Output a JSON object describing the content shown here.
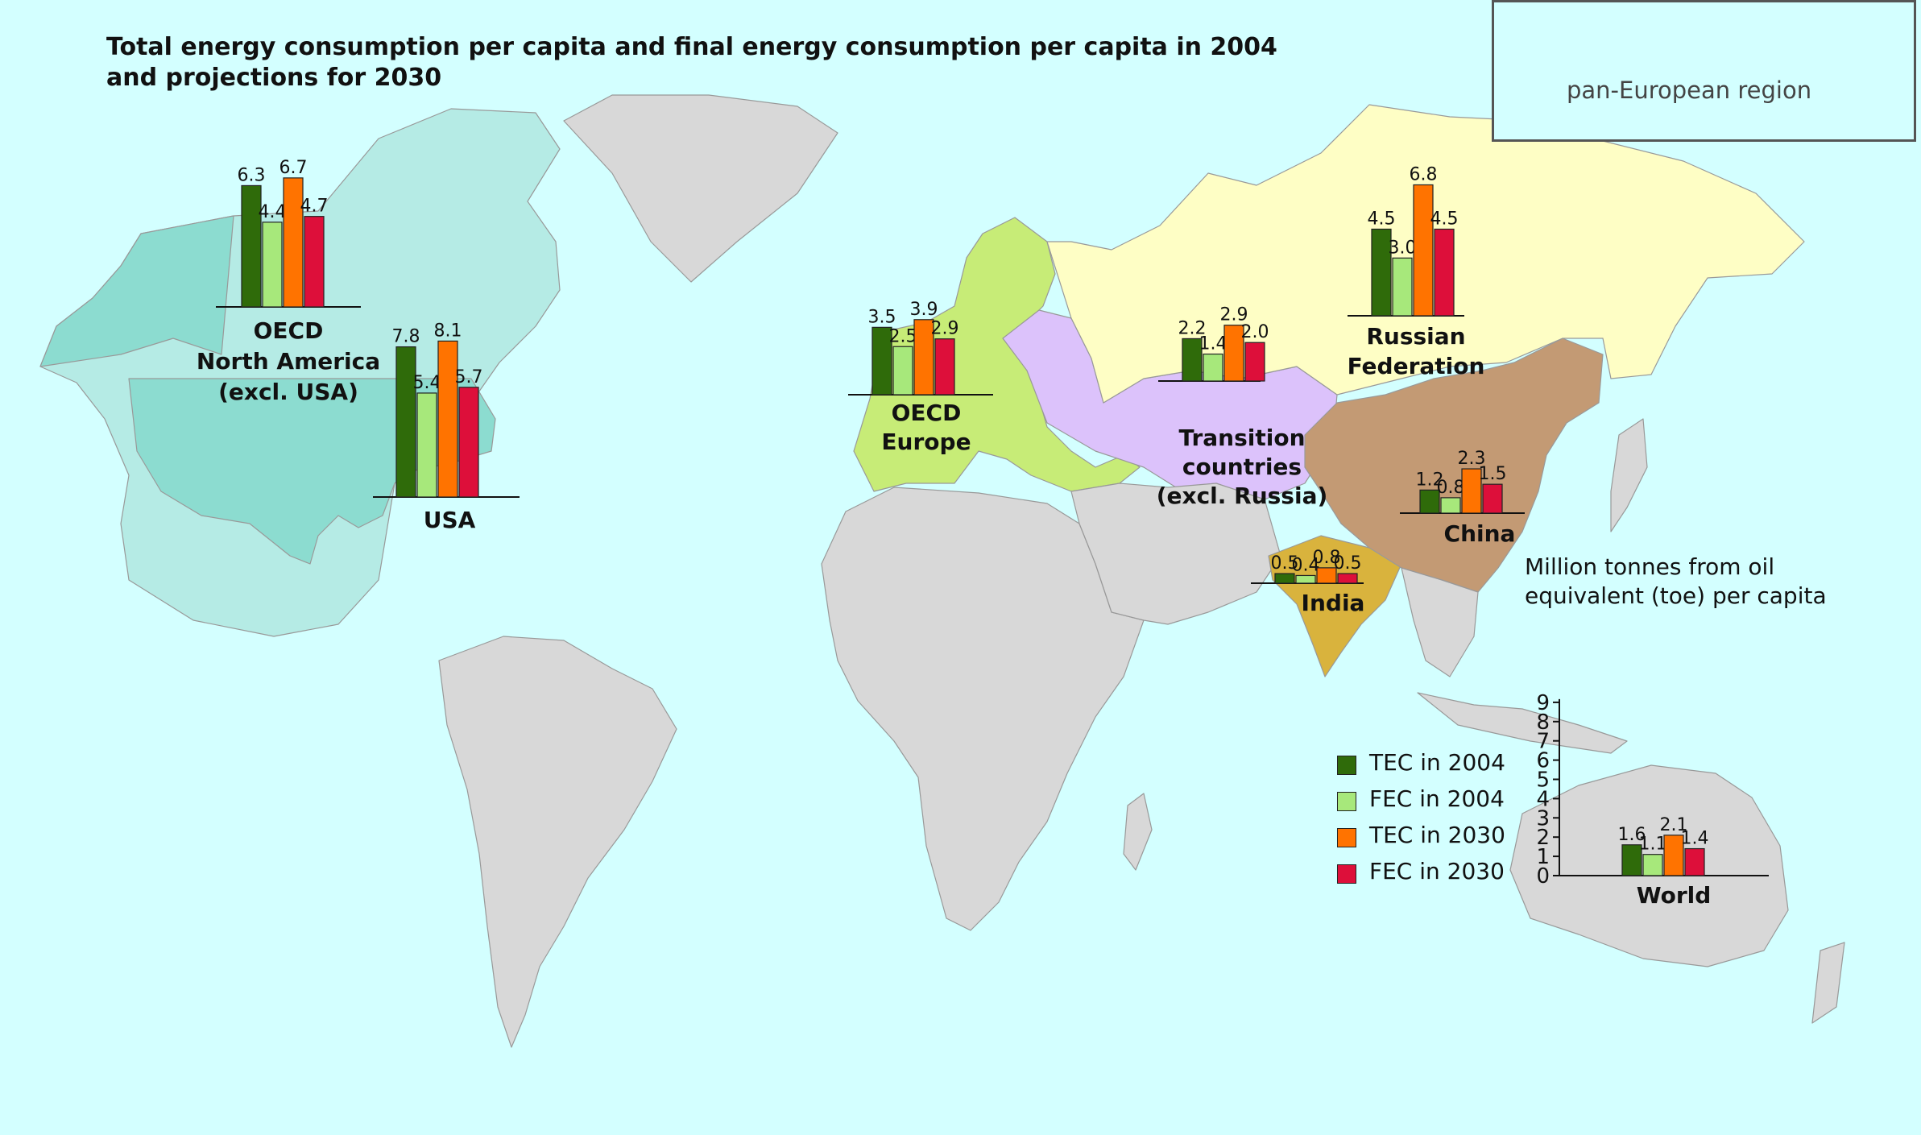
{
  "title": "Total energy consumption per capita and final energy consumption per capita in 2004 and projections for 2030",
  "inset_label": "pan-European region",
  "y_axis_label": "Million tonnes from oil equivalent (toe) per capita",
  "colors": {
    "ocean": "#d3ffff",
    "land_other": "#d8d8d8",
    "oecd_north_america": "#b5ebe5",
    "usa": "#8cdcd0",
    "oecd_europe": "#c7ec77",
    "transition": "#dcc2fb",
    "russia": "#fefec5",
    "china": "#c39a74",
    "india": "#d9b33d",
    "tec2004": "#2f6b0a",
    "fec2004": "#a7e87b",
    "tec2030": "#ff7300",
    "fec2030": "#dd0f3a"
  },
  "legend": [
    {
      "label": "TEC in 2004",
      "color": "#2f6b0a"
    },
    {
      "label": "FEC in 2004",
      "color": "#a7e87b"
    },
    {
      "label": "TEC in 2030",
      "color": "#ff7300"
    },
    {
      "label": "FEC in 2030",
      "color": "#dd0f3a"
    }
  ],
  "chart_data": {
    "type": "bar",
    "categories": [
      "TEC in 2004",
      "FEC in 2004",
      "TEC in 2030",
      "FEC in 2030"
    ],
    "y_ticks": [
      "0",
      "1",
      "2",
      "3",
      "4",
      "5",
      "6",
      "7",
      "8",
      "9"
    ],
    "ylim": [
      0,
      9
    ],
    "regions": [
      {
        "name": "OECD North America (excl. USA)",
        "label_lines": [
          "OECD",
          "North America",
          "(excl. USA)"
        ],
        "values": [
          6.3,
          4.4,
          6.7,
          4.7
        ],
        "value_labels": [
          "6.3",
          "4.4",
          "6.7",
          "4.7"
        ]
      },
      {
        "name": "USA",
        "label_lines": [
          "USA"
        ],
        "values": [
          7.8,
          5.4,
          8.1,
          5.7
        ],
        "value_labels": [
          "7.8",
          "5.4",
          "8.1",
          "5.7"
        ]
      },
      {
        "name": "OECD Europe",
        "label_lines": [
          "OECD",
          "Europe"
        ],
        "values": [
          3.5,
          2.5,
          3.9,
          2.9
        ],
        "value_labels": [
          "3.5",
          "2.5",
          "3.9",
          "2.9"
        ]
      },
      {
        "name": "Transition countries (excl. Russia)",
        "label_lines": [
          "Transition",
          "countries",
          "(excl. Russia)"
        ],
        "values": [
          2.2,
          1.4,
          2.9,
          2.0
        ],
        "value_labels": [
          "2.2",
          "1.4",
          "2.9",
          "2.0"
        ]
      },
      {
        "name": "Russian Federation",
        "label_lines": [
          "Russian",
          "Federation"
        ],
        "values": [
          4.5,
          3.0,
          6.8,
          4.5
        ],
        "value_labels": [
          "4.5",
          "3.0",
          "6.8",
          "4.5"
        ]
      },
      {
        "name": "China",
        "label_lines": [
          "China"
        ],
        "values": [
          1.2,
          0.8,
          2.3,
          1.5
        ],
        "value_labels": [
          "1.2",
          "0.8",
          "2.3",
          "1.5"
        ]
      },
      {
        "name": "India",
        "label_lines": [
          "India"
        ],
        "values": [
          0.5,
          0.4,
          0.8,
          0.5
        ],
        "value_labels": [
          "0.5",
          "0.4",
          "0.8",
          "0.5"
        ]
      },
      {
        "name": "World",
        "label_lines": [
          "World"
        ],
        "values": [
          1.6,
          1.1,
          2.1,
          1.4
        ],
        "value_labels": [
          "1.6",
          "1.1",
          "2.1",
          "1.4"
        ]
      }
    ]
  }
}
